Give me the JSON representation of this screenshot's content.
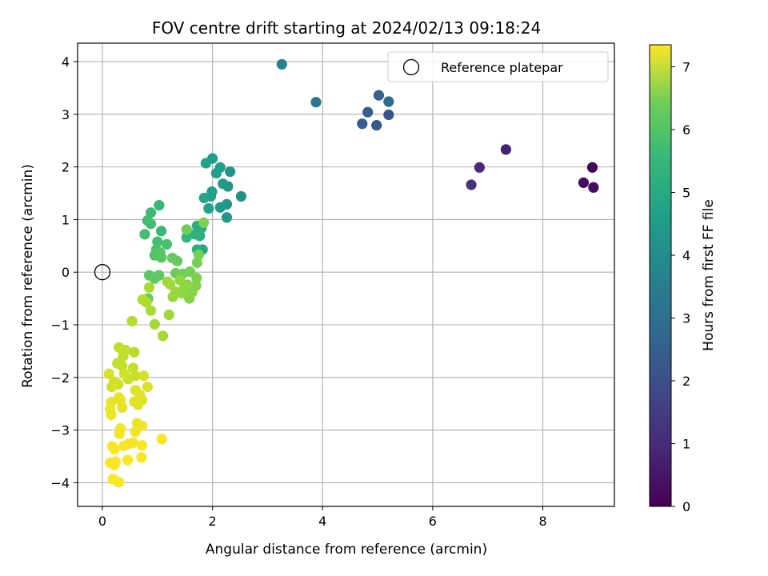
{
  "chart_data": {
    "type": "scatter",
    "title": "FOV centre drift starting at 2024/02/13 09:18:24",
    "xlabel": "Angular distance from reference (arcmin)",
    "ylabel": "Rotation from reference (arcmin)",
    "xlim": [
      -0.45,
      9.3
    ],
    "ylim": [
      -4.45,
      4.35
    ],
    "xticks": [
      0,
      2,
      4,
      6,
      8
    ],
    "yticks": [
      -4,
      -3,
      -2,
      -1,
      0,
      1,
      2,
      3,
      4
    ],
    "xtick_labels": [
      "0",
      "2",
      "4",
      "6",
      "8"
    ],
    "ytick_labels": [
      "−4",
      "−3",
      "−2",
      "−1",
      "0",
      "1",
      "2",
      "3",
      "4"
    ],
    "grid": true,
    "colormap": "viridis",
    "colorbar": {
      "label": "Hours from first FF file",
      "range": [
        0,
        7.35
      ],
      "ticks": [
        0,
        1,
        2,
        3,
        4,
        5,
        6,
        7
      ],
      "tick_labels": [
        "0",
        "1",
        "2",
        "3",
        "4",
        "5",
        "6",
        "7"
      ]
    },
    "legend": {
      "position": "top-right",
      "entries": [
        "Reference platepar"
      ]
    },
    "reference_point": {
      "x": 0,
      "y": 0
    },
    "points": [
      {
        "x": 8.9,
        "y": 1.99,
        "t": 0.1
      },
      {
        "x": 8.92,
        "y": 1.61,
        "t": 0.2
      },
      {
        "x": 8.74,
        "y": 1.7,
        "t": 0.3
      },
      {
        "x": 7.33,
        "y": 2.33,
        "t": 0.7
      },
      {
        "x": 6.85,
        "y": 1.99,
        "t": 0.9
      },
      {
        "x": 6.7,
        "y": 1.66,
        "t": 1.1
      },
      {
        "x": 5.2,
        "y": 2.99,
        "t": 1.9
      },
      {
        "x": 4.98,
        "y": 2.79,
        "t": 2.0
      },
      {
        "x": 4.72,
        "y": 2.82,
        "t": 2.1
      },
      {
        "x": 4.82,
        "y": 3.04,
        "t": 2.2
      },
      {
        "x": 5.02,
        "y": 3.36,
        "t": 2.3
      },
      {
        "x": 5.2,
        "y": 3.24,
        "t": 2.5
      },
      {
        "x": 3.88,
        "y": 3.23,
        "t": 2.9
      },
      {
        "x": 3.26,
        "y": 3.95,
        "t": 3.3
      },
      {
        "x": 2.52,
        "y": 1.44,
        "t": 3.7
      },
      {
        "x": 2.32,
        "y": 1.91,
        "t": 3.8
      },
      {
        "x": 2.28,
        "y": 1.63,
        "t": 3.85
      },
      {
        "x": 2.26,
        "y": 1.29,
        "t": 3.9
      },
      {
        "x": 2.26,
        "y": 1.04,
        "t": 3.95
      },
      {
        "x": 2.19,
        "y": 1.68,
        "t": 4.0
      },
      {
        "x": 2.14,
        "y": 1.23,
        "t": 4.0
      },
      {
        "x": 2.14,
        "y": 1.99,
        "t": 4.05
      },
      {
        "x": 2.07,
        "y": 1.88,
        "t": 4.1
      },
      {
        "x": 2.0,
        "y": 2.16,
        "t": 4.1
      },
      {
        "x": 1.99,
        "y": 1.53,
        "t": 4.15
      },
      {
        "x": 1.97,
        "y": 1.44,
        "t": 4.2
      },
      {
        "x": 1.93,
        "y": 1.21,
        "t": 4.2
      },
      {
        "x": 1.88,
        "y": 2.07,
        "t": 4.25
      },
      {
        "x": 1.85,
        "y": 1.41,
        "t": 4.3
      },
      {
        "x": 1.82,
        "y": 0.43,
        "t": 4.4
      },
      {
        "x": 1.8,
        "y": 0.84,
        "t": 4.5
      },
      {
        "x": 1.77,
        "y": 0.69,
        "t": 4.55
      },
      {
        "x": 1.72,
        "y": 0.88,
        "t": 4.6
      },
      {
        "x": 1.72,
        "y": 0.43,
        "t": 4.65
      },
      {
        "x": 1.68,
        "y": 0.72,
        "t": 4.7
      },
      {
        "x": 1.53,
        "y": 0.66,
        "t": 4.8
      },
      {
        "x": 1.03,
        "y": 1.27,
        "t": 4.9
      },
      {
        "x": 1.07,
        "y": 0.78,
        "t": 4.95
      },
      {
        "x": 0.88,
        "y": 1.13,
        "t": 5.0
      },
      {
        "x": 0.82,
        "y": 0.98,
        "t": 5.05
      },
      {
        "x": 0.88,
        "y": 0.92,
        "t": 5.1
      },
      {
        "x": 0.77,
        "y": 0.72,
        "t": 5.1
      },
      {
        "x": 1.0,
        "y": 0.58,
        "t": 5.15
      },
      {
        "x": 1.17,
        "y": 0.53,
        "t": 5.2
      },
      {
        "x": 0.98,
        "y": 0.43,
        "t": 5.25
      },
      {
        "x": 0.95,
        "y": 0.32,
        "t": 5.3
      },
      {
        "x": 1.05,
        "y": 0.37,
        "t": 5.35
      },
      {
        "x": 1.07,
        "y": 0.28,
        "t": 5.4
      },
      {
        "x": 0.85,
        "y": -0.06,
        "t": 5.45
      },
      {
        "x": 0.95,
        "y": -0.12,
        "t": 5.5
      },
      {
        "x": 1.03,
        "y": -0.06,
        "t": 5.5
      },
      {
        "x": 0.83,
        "y": -0.5,
        "t": 5.55
      },
      {
        "x": 1.27,
        "y": 0.27,
        "t": 5.6
      },
      {
        "x": 1.36,
        "y": 0.21,
        "t": 5.6
      },
      {
        "x": 1.33,
        "y": -0.02,
        "t": 5.65
      },
      {
        "x": 1.46,
        "y": -0.03,
        "t": 5.7
      },
      {
        "x": 1.53,
        "y": 0.81,
        "t": 5.7
      },
      {
        "x": 1.59,
        "y": 0.01,
        "t": 5.75
      },
      {
        "x": 1.72,
        "y": 0.18,
        "t": 5.8
      },
      {
        "x": 1.75,
        "y": 0.33,
        "t": 5.8
      },
      {
        "x": 1.84,
        "y": 0.94,
        "t": 5.85
      },
      {
        "x": 1.71,
        "y": -0.11,
        "t": 5.9
      },
      {
        "x": 1.7,
        "y": -0.26,
        "t": 5.95
      },
      {
        "x": 1.63,
        "y": -0.38,
        "t": 6.0
      },
      {
        "x": 1.58,
        "y": -0.5,
        "t": 6.0
      },
      {
        "x": 1.55,
        "y": -0.24,
        "t": 6.05
      },
      {
        "x": 1.49,
        "y": -0.3,
        "t": 6.1
      },
      {
        "x": 1.44,
        "y": -0.4,
        "t": 6.1
      },
      {
        "x": 1.41,
        "y": -0.15,
        "t": 6.15
      },
      {
        "x": 1.33,
        "y": -0.37,
        "t": 6.2
      },
      {
        "x": 1.28,
        "y": -0.47,
        "t": 6.2
      },
      {
        "x": 1.23,
        "y": -0.23,
        "t": 6.25
      },
      {
        "x": 1.18,
        "y": -0.18,
        "t": 6.3
      },
      {
        "x": 1.21,
        "y": -0.81,
        "t": 6.3
      },
      {
        "x": 1.1,
        "y": -1.21,
        "t": 6.35
      },
      {
        "x": 0.95,
        "y": -0.99,
        "t": 6.35
      },
      {
        "x": 0.88,
        "y": -0.73,
        "t": 6.4
      },
      {
        "x": 0.85,
        "y": -0.29,
        "t": 6.4
      },
      {
        "x": 0.8,
        "y": -0.57,
        "t": 6.45
      },
      {
        "x": 0.73,
        "y": -0.52,
        "t": 6.5
      },
      {
        "x": 0.54,
        "y": -0.93,
        "t": 6.5
      },
      {
        "x": 0.58,
        "y": -1.52,
        "t": 6.55
      },
      {
        "x": 0.42,
        "y": -1.48,
        "t": 6.6
      },
      {
        "x": 0.38,
        "y": -1.59,
        "t": 6.6
      },
      {
        "x": 0.3,
        "y": -1.43,
        "t": 6.65
      },
      {
        "x": 0.36,
        "y": -1.78,
        "t": 6.65
      },
      {
        "x": 0.27,
        "y": -1.73,
        "t": 6.7
      },
      {
        "x": 0.56,
        "y": -1.82,
        "t": 6.7
      },
      {
        "x": 0.6,
        "y": -1.97,
        "t": 6.75
      },
      {
        "x": 0.47,
        "y": -2.03,
        "t": 6.75
      },
      {
        "x": 0.4,
        "y": -1.93,
        "t": 6.8
      },
      {
        "x": 0.29,
        "y": -2.13,
        "t": 6.8
      },
      {
        "x": 0.21,
        "y": -2.08,
        "t": 6.85
      },
      {
        "x": 0.17,
        "y": -2.18,
        "t": 6.85
      },
      {
        "x": 0.12,
        "y": -1.93,
        "t": 6.9
      },
      {
        "x": 0.75,
        "y": -1.97,
        "t": 6.9
      },
      {
        "x": 0.82,
        "y": -2.18,
        "t": 6.95
      },
      {
        "x": 0.68,
        "y": -2.33,
        "t": 6.95
      },
      {
        "x": 0.6,
        "y": -2.24,
        "t": 7.0
      },
      {
        "x": 0.72,
        "y": -2.43,
        "t": 7.0
      },
      {
        "x": 0.65,
        "y": -2.52,
        "t": 7.05
      },
      {
        "x": 0.58,
        "y": -2.46,
        "t": 7.05
      },
      {
        "x": 0.33,
        "y": -2.43,
        "t": 7.05
      },
      {
        "x": 0.3,
        "y": -2.38,
        "t": 7.1
      },
      {
        "x": 0.36,
        "y": -2.57,
        "t": 7.1
      },
      {
        "x": 0.16,
        "y": -2.47,
        "t": 7.1
      },
      {
        "x": 0.14,
        "y": -2.6,
        "t": 7.15
      },
      {
        "x": 0.16,
        "y": -2.71,
        "t": 7.15
      },
      {
        "x": 0.63,
        "y": -2.87,
        "t": 7.15
      },
      {
        "x": 0.72,
        "y": -2.92,
        "t": 7.2
      },
      {
        "x": 0.6,
        "y": -3.03,
        "t": 7.2
      },
      {
        "x": 0.33,
        "y": -2.97,
        "t": 7.2
      },
      {
        "x": 0.31,
        "y": -3.07,
        "t": 7.25
      },
      {
        "x": 0.48,
        "y": -3.26,
        "t": 7.25
      },
      {
        "x": 0.56,
        "y": -3.24,
        "t": 7.25
      },
      {
        "x": 0.39,
        "y": -3.3,
        "t": 7.25
      },
      {
        "x": 0.72,
        "y": -3.29,
        "t": 7.3
      },
      {
        "x": 0.18,
        "y": -3.31,
        "t": 7.3
      },
      {
        "x": 0.22,
        "y": -3.36,
        "t": 7.3
      },
      {
        "x": 1.08,
        "y": -3.17,
        "t": 7.3
      },
      {
        "x": 0.71,
        "y": -3.52,
        "t": 7.3
      },
      {
        "x": 0.46,
        "y": -3.57,
        "t": 7.32
      },
      {
        "x": 0.14,
        "y": -3.62,
        "t": 7.32
      },
      {
        "x": 0.24,
        "y": -3.6,
        "t": 7.33
      },
      {
        "x": 0.22,
        "y": -3.66,
        "t": 7.33
      },
      {
        "x": 0.19,
        "y": -3.93,
        "t": 7.34
      },
      {
        "x": 0.3,
        "y": -3.99,
        "t": 7.35
      }
    ]
  }
}
